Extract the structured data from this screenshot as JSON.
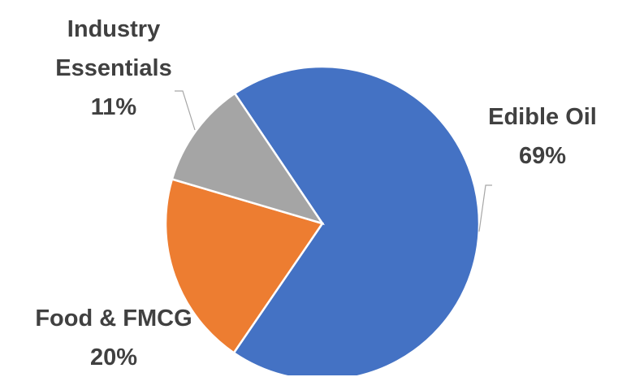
{
  "chart_data": {
    "type": "pie",
    "categories": [
      "Edible Oil",
      "Food & FMCG",
      "Industry Essentials"
    ],
    "values": [
      69,
      20,
      11
    ],
    "value_labels": [
      "69%",
      "20%",
      "11%"
    ],
    "colors": [
      "#4472c4",
      "#ed7d31",
      "#a5a5a5"
    ]
  }
}
